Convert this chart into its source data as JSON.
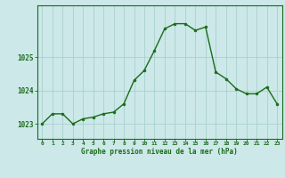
{
  "hours": [
    0,
    1,
    2,
    3,
    4,
    5,
    6,
    7,
    8,
    9,
    10,
    11,
    12,
    13,
    14,
    15,
    16,
    17,
    18,
    19,
    20,
    21,
    22,
    23
  ],
  "pressure": [
    1023.0,
    1023.3,
    1023.3,
    1023.0,
    1023.15,
    1023.2,
    1023.3,
    1023.35,
    1023.6,
    1024.3,
    1024.6,
    1025.2,
    1025.85,
    1026.0,
    1026.0,
    1025.8,
    1025.9,
    1024.55,
    1024.35,
    1024.05,
    1023.9,
    1023.9,
    1024.1,
    1023.6
  ],
  "line_color": "#1a6b1a",
  "marker_color": "#1a6b1a",
  "bg_color": "#cce8e8",
  "grid_color": "#aad0d0",
  "xlabel": "Graphe pression niveau de la mer (hPa)",
  "xlabel_color": "#1a6b1a",
  "tick_color": "#1a6b1a",
  "ytick_labels": [
    "1023",
    "1024",
    "1025"
  ],
  "yticks": [
    1023,
    1024,
    1025
  ],
  "ylim": [
    1022.55,
    1026.55
  ],
  "xlim": [
    -0.5,
    23.5
  ],
  "figsize": [
    3.2,
    2.0
  ],
  "dpi": 100
}
